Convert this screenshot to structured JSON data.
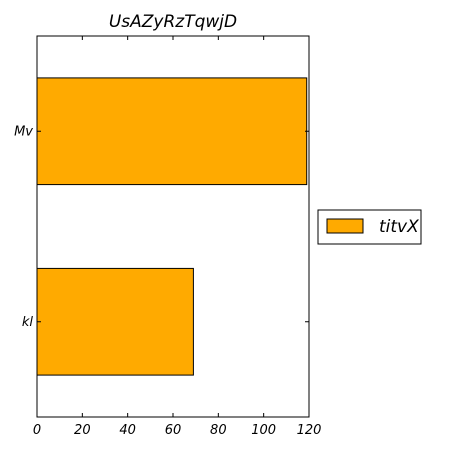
{
  "chart_data": {
    "type": "bar",
    "orientation": "horizontal",
    "title": "UsAZyRzTqwjD",
    "categories": [
      "kl",
      "Mv"
    ],
    "series": [
      {
        "name": "titvX",
        "values": [
          69,
          119
        ],
        "color": "#ffaa00"
      }
    ],
    "xlim": [
      0,
      120
    ],
    "xticks": [
      0,
      20,
      40,
      60,
      80,
      100,
      120
    ],
    "xlabel": "",
    "ylabel": "",
    "grid": false,
    "legend": {
      "placement": "right-outside"
    }
  }
}
